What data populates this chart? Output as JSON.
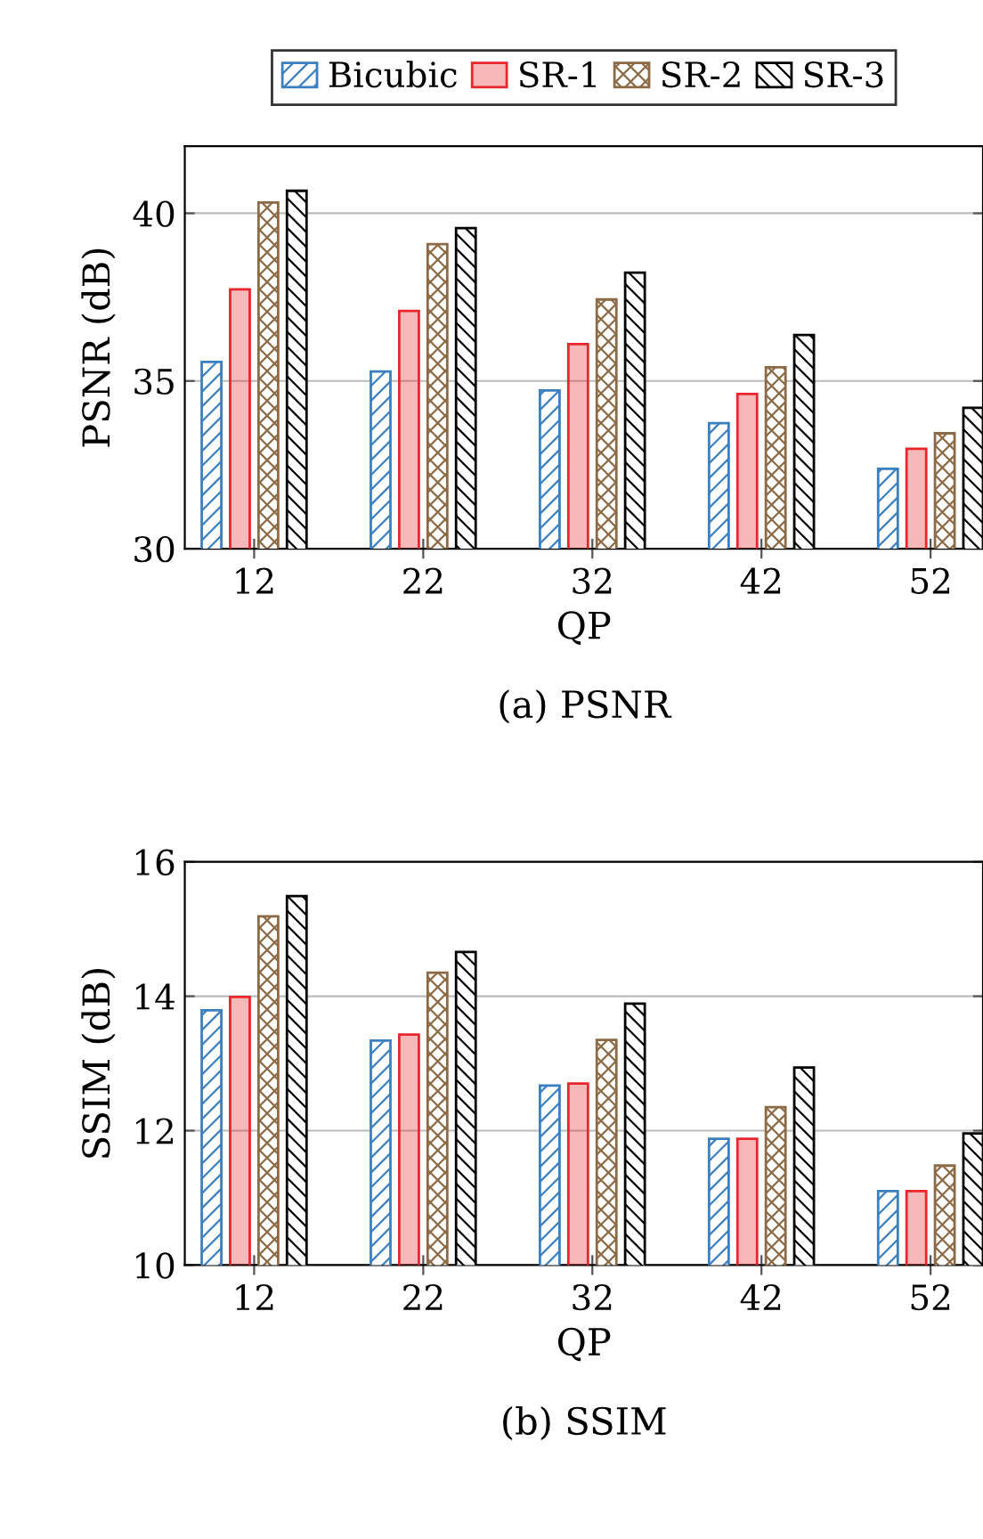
{
  "chart_data": [
    {
      "type": "bar",
      "title": "(a) PSNR",
      "xlabel": "QP",
      "ylabel": "PSNR (dB)",
      "categories": [
        "12",
        "22",
        "32",
        "42",
        "52"
      ],
      "series": [
        {
          "name": "Bicubic",
          "color": "#3a7fc0",
          "values": [
            35.57,
            35.28,
            34.72,
            33.74,
            32.38
          ]
        },
        {
          "name": "SR-1",
          "color": "#e8262b",
          "values": [
            37.73,
            37.09,
            36.1,
            34.61,
            32.98
          ]
        },
        {
          "name": "SR-2",
          "color": "#8b6a45",
          "values": [
            40.32,
            39.08,
            37.43,
            35.41,
            33.44
          ]
        },
        {
          "name": "SR-3",
          "color": "#000000",
          "values": [
            40.67,
            39.56,
            38.23,
            36.37,
            34.2
          ]
        }
      ],
      "ylim": [
        30,
        42
      ],
      "yticks": [
        30,
        35,
        40
      ],
      "grid": "y",
      "legend": "top"
    },
    {
      "type": "bar",
      "title": "(b) SSIM",
      "xlabel": "QP",
      "ylabel": "SSIM (dB)",
      "categories": [
        "12",
        "22",
        "32",
        "42",
        "52"
      ],
      "series": [
        {
          "color": "#3a7fc0",
          "values": [
            13.79,
            13.34,
            12.67,
            11.88,
            11.1
          ]
        },
        {
          "color": "#e8262b",
          "values": [
            13.99,
            13.43,
            12.7,
            11.88,
            11.1
          ]
        },
        {
          "color": "#8b6a45",
          "values": [
            15.19,
            14.35,
            13.35,
            12.35,
            11.48
          ]
        },
        {
          "color": "#000000",
          "values": [
            15.49,
            14.66,
            13.89,
            12.94,
            11.96
          ]
        }
      ],
      "ylim": [
        10,
        16
      ],
      "yticks": [
        10,
        12,
        14,
        16
      ],
      "grid": "y"
    }
  ]
}
